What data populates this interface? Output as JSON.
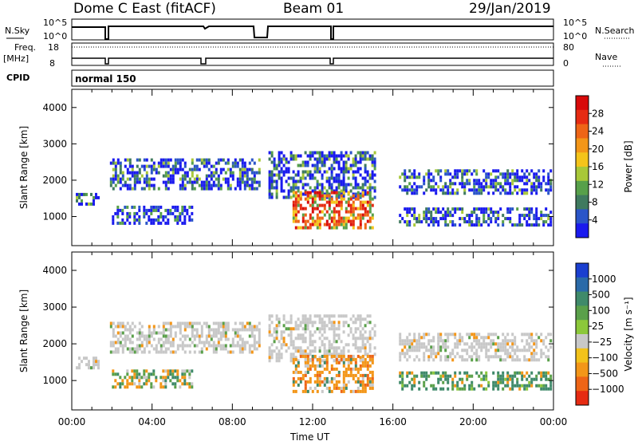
{
  "header": {
    "radar": "Dome C East (fitACF)",
    "beam": "Beam 01",
    "date": "29/Jan/2019"
  },
  "summary": {
    "nsky_label": "N.Sky",
    "nsky_ticks": [
      "10^5",
      "10^0"
    ],
    "nsearch_label": "N.Search",
    "nsearch_ticks": [
      "10^5",
      "10^0"
    ],
    "freq_label_1": "Freq.",
    "freq_label_2": "[MHz]",
    "freq_ticks": [
      "18",
      "8"
    ],
    "nave_label": "Nave",
    "nave_ticks": [
      "80",
      "0"
    ],
    "cpid_label": "CPID",
    "cpid_value": "normal 150"
  },
  "chart_data": [
    {
      "type": "heatmap",
      "name": "power",
      "ylabel": "Slant Range [km]",
      "xlabel": "Time UT",
      "ylim": [
        200,
        4500
      ],
      "xlim": [
        0,
        24
      ],
      "y_ticks": [
        "1000",
        "2000",
        "3000",
        "4000"
      ],
      "x_ticks": [
        "00:00",
        "04:00",
        "08:00",
        "12:00",
        "16:00",
        "20:00",
        "00:00"
      ],
      "colorbar": {
        "label": "Power [dB]",
        "ticks": [
          "4",
          "8",
          "12",
          "16",
          "20",
          "24",
          "28"
        ],
        "colors": [
          "#1a1aee",
          "#2a55c8",
          "#3f7a5f",
          "#57a04a",
          "#a8c838",
          "#f4c41a",
          "#f39618",
          "#ee6516",
          "#e62b12",
          "#d80a0a"
        ]
      },
      "echo_regions": [
        {
          "t_start": 0.2,
          "t_end": 1.3,
          "range_min": 1350,
          "range_max": 1650,
          "level": "mid"
        },
        {
          "t_start": 1.9,
          "t_end": 9.3,
          "range_min": 1750,
          "range_max": 2600,
          "level": "mid"
        },
        {
          "t_start": 2.0,
          "t_end": 6.0,
          "range_min": 800,
          "range_max": 1300,
          "level": "low"
        },
        {
          "t_start": 9.8,
          "t_end": 15.1,
          "range_min": 1500,
          "range_max": 2800,
          "level": "mid"
        },
        {
          "t_start": 11.0,
          "t_end": 15.0,
          "range_min": 700,
          "range_max": 1700,
          "level": "high"
        },
        {
          "t_start": 16.3,
          "t_end": 23.9,
          "range_min": 1600,
          "range_max": 2300,
          "level": "mid"
        },
        {
          "t_start": 16.3,
          "t_end": 23.9,
          "range_min": 800,
          "range_max": 1250,
          "level": "mid"
        }
      ]
    },
    {
      "type": "heatmap",
      "name": "velocity",
      "ylabel": "Slant Range [km]",
      "xlabel": "Time UT",
      "ylim": [
        200,
        4500
      ],
      "xlim": [
        0,
        24
      ],
      "y_ticks": [
        "1000",
        "2000",
        "3000",
        "4000"
      ],
      "x_ticks": [
        "00:00",
        "04:00",
        "08:00",
        "12:00",
        "16:00",
        "20:00",
        "00:00"
      ],
      "colorbar": {
        "label": "Velocity [m s⁻¹]",
        "ticks": [
          "1000",
          "500",
          "100",
          "25",
          "−25",
          "−100",
          "−500",
          "−1000"
        ],
        "colors": [
          "#1a3fd0",
          "#2a6aa8",
          "#3f8a6a",
          "#5aa04a",
          "#8cc83a",
          "#c8c8c8",
          "#f2c21a",
          "#f39618",
          "#ee6516",
          "#e62b12"
        ]
      },
      "echo_regions": [
        {
          "t_start": 0.2,
          "t_end": 1.3,
          "range_min": 1350,
          "range_max": 1650,
          "level": "ground"
        },
        {
          "t_start": 1.9,
          "t_end": 9.3,
          "range_min": 1750,
          "range_max": 2600,
          "level": "ground"
        },
        {
          "t_start": 2.0,
          "t_end": 6.0,
          "range_min": 800,
          "range_max": 1300,
          "level": "mixed"
        },
        {
          "t_start": 9.8,
          "t_end": 15.1,
          "range_min": 1500,
          "range_max": 2800,
          "level": "ground"
        },
        {
          "t_start": 11.0,
          "t_end": 15.0,
          "range_min": 700,
          "range_max": 1700,
          "level": "negative"
        },
        {
          "t_start": 16.3,
          "t_end": 23.9,
          "range_min": 1600,
          "range_max": 2300,
          "level": "ground"
        },
        {
          "t_start": 16.3,
          "t_end": 23.9,
          "range_min": 800,
          "range_max": 1250,
          "level": "positive"
        }
      ]
    }
  ]
}
